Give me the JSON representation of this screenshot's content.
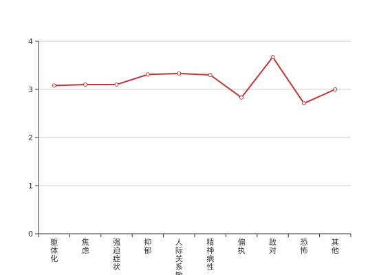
{
  "chart_data": {
    "type": "line",
    "title": "",
    "xlabel": "",
    "ylabel": "",
    "categories": [
      "躯体化",
      "焦虑",
      "强迫症状",
      "抑郁",
      "人际关系敏感",
      "精神病性",
      "偏执",
      "敌对",
      "恐怖",
      "其他"
    ],
    "series": [
      {
        "values": [
          3.08,
          3.1,
          3.1,
          3.31,
          3.33,
          3.3,
          2.83,
          3.67,
          2.71,
          3.0
        ]
      }
    ],
    "ylim": [
      0,
      4
    ],
    "yticks": [
      0,
      1,
      2,
      3,
      4
    ],
    "grid": true,
    "legend": "none",
    "colors": {
      "line": "#c23531",
      "grid": "#cccccc",
      "axis": "#333333"
    }
  }
}
